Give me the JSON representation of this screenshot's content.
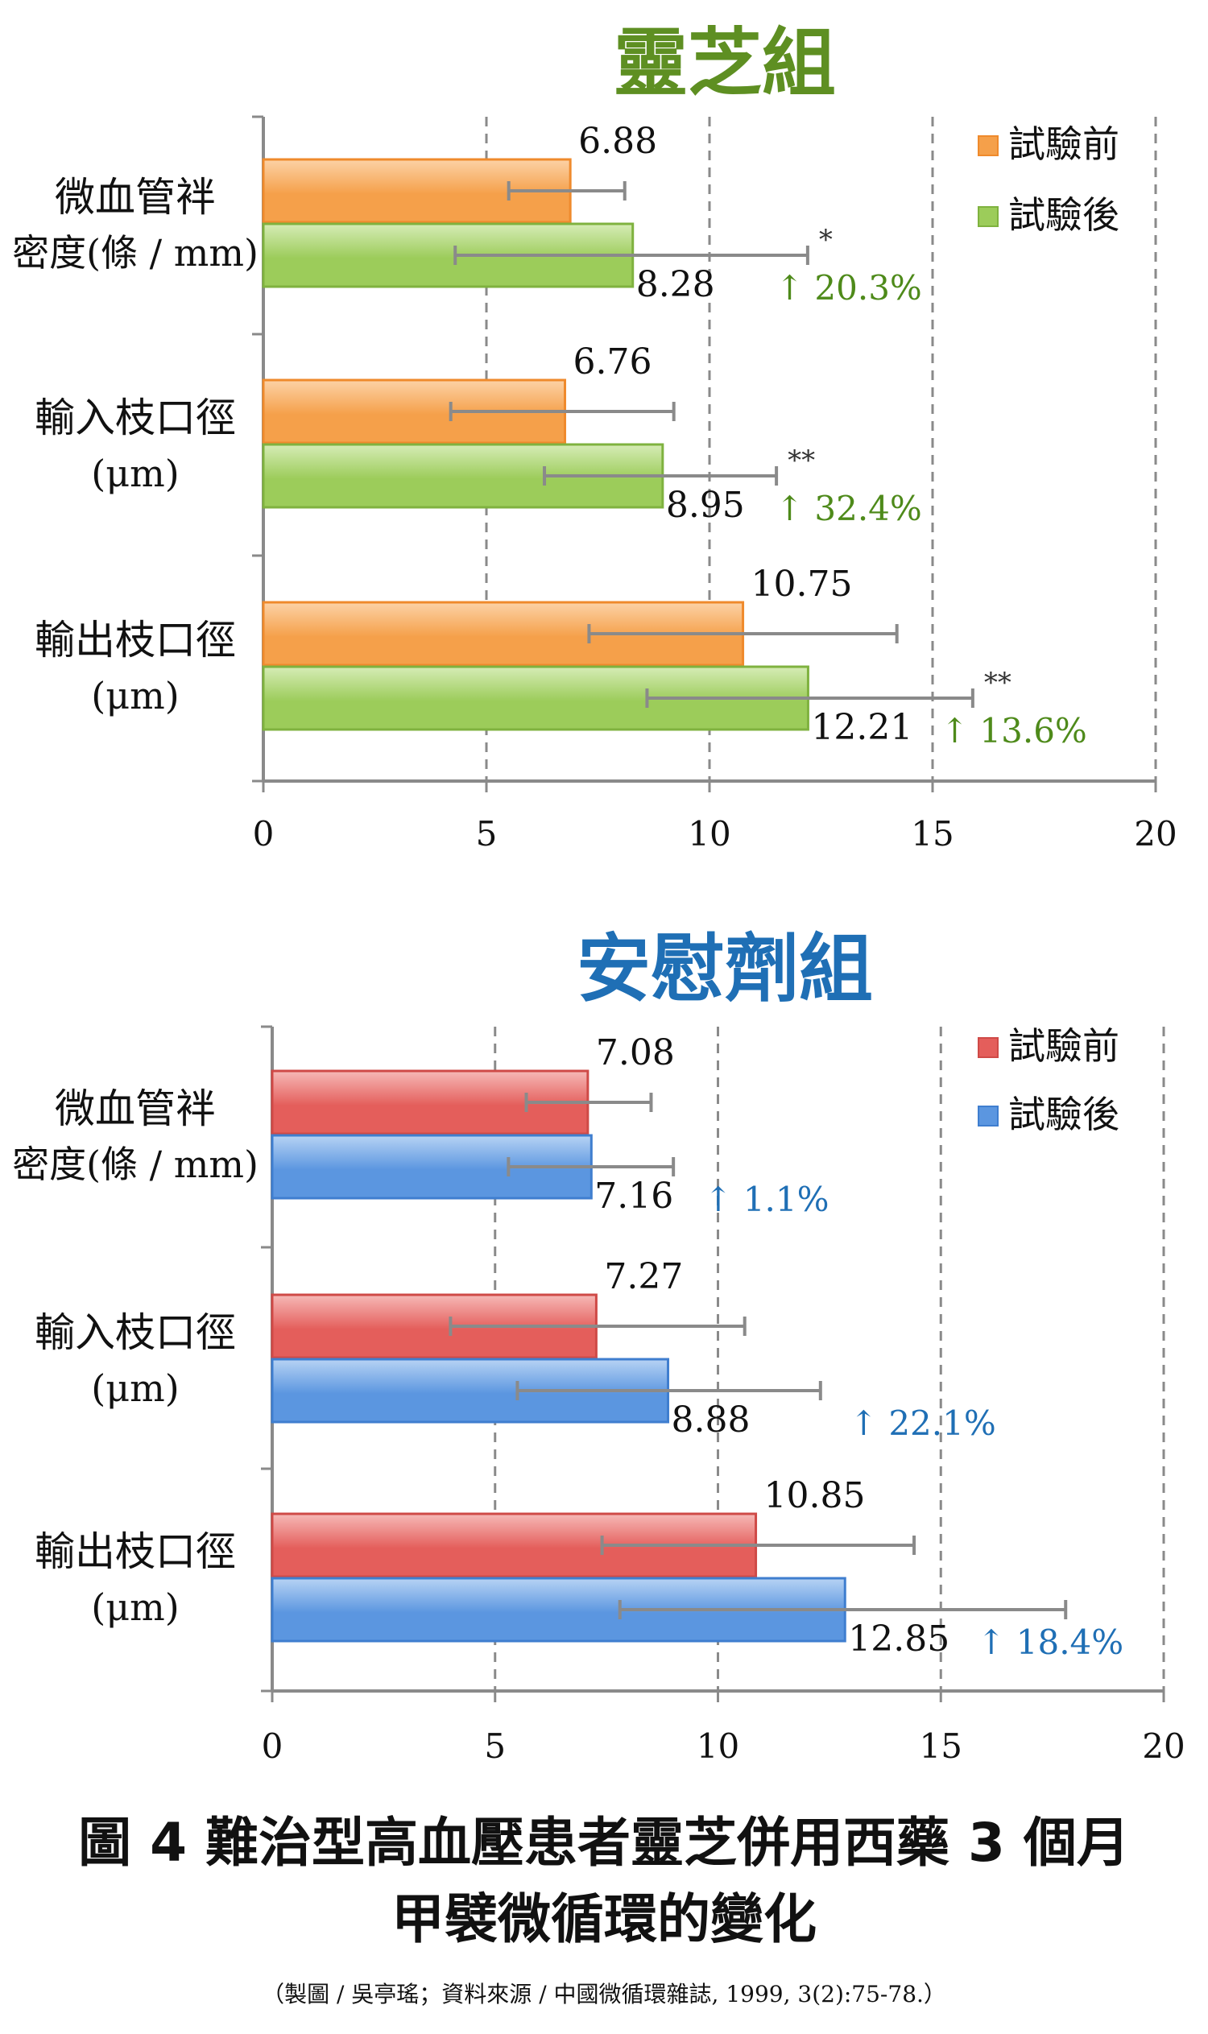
{
  "chart_data": [
    {
      "type": "bar",
      "orientation": "horizontal",
      "title": "靈芝組",
      "title_color": "#5e8f22",
      "categories": [
        {
          "line1": "微血管袢",
          "line2": "密度(條 / mm)"
        },
        {
          "line1": "輸入枝口徑",
          "line2": "(μm)"
        },
        {
          "line1": "輸出枝口徑",
          "line2": "(μm)"
        }
      ],
      "series": [
        {
          "name": "試驗前",
          "color": "#f5a04a",
          "color_light": "#fcd2a6",
          "stroke": "#ef8a2c",
          "values": [
            6.88,
            6.76,
            10.75
          ],
          "error_bars": [
            [
              5.5,
              8.1
            ],
            [
              4.2,
              9.2
            ],
            [
              7.3,
              14.2
            ]
          ],
          "labels": [
            "6.88",
            "6.76",
            "10.75"
          ]
        },
        {
          "name": "試驗後",
          "color": "#9ccc5a",
          "color_light": "#d6ecb6",
          "stroke": "#7fb23f",
          "values": [
            8.28,
            8.95,
            12.21
          ],
          "error_bars": [
            [
              4.3,
              12.2
            ],
            [
              6.3,
              11.5
            ],
            [
              8.6,
              15.9
            ]
          ],
          "labels": [
            "8.28",
            "8.95",
            "12.21"
          ],
          "significance": [
            "*",
            "**",
            "**"
          ],
          "changes": [
            "↑ 20.3%",
            "↑ 32.4%",
            "↑ 13.6%"
          ]
        }
      ],
      "change_color": "#4e8a1a",
      "x_ticks": [
        "0",
        "5",
        "10",
        "15",
        "20"
      ],
      "xlim": [
        0,
        20
      ],
      "gridlines": "dashed",
      "legend_position": "top-right"
    },
    {
      "type": "bar",
      "orientation": "horizontal",
      "title": "安慰劑組",
      "title_color": "#1f6fb5",
      "categories": [
        {
          "line1": "微血管袢",
          "line2": "密度(條 / mm)"
        },
        {
          "line1": "輸入枝口徑",
          "line2": "(μm)"
        },
        {
          "line1": "輸出枝口徑",
          "line2": "(μm)"
        }
      ],
      "series": [
        {
          "name": "試驗前",
          "color": "#e45e5b",
          "color_light": "#f6b9b7",
          "stroke": "#cf4a47",
          "values": [
            7.08,
            7.27,
            10.85
          ],
          "error_bars": [
            [
              5.7,
              8.5
            ],
            [
              4.0,
              10.6
            ],
            [
              7.4,
              14.4
            ]
          ],
          "labels": [
            "7.08",
            "7.27",
            "10.85"
          ]
        },
        {
          "name": "試驗後",
          "color": "#5b96e0",
          "color_light": "#b7d3f4",
          "stroke": "#3f7ecf",
          "values": [
            7.16,
            8.88,
            12.85
          ],
          "error_bars": [
            [
              5.3,
              9.0
            ],
            [
              5.5,
              12.3
            ],
            [
              7.8,
              17.8
            ]
          ],
          "labels": [
            "7.16",
            "8.88",
            "12.85"
          ],
          "significance": [
            "",
            "",
            ""
          ],
          "changes": [
            "↑ 1.1%",
            "↑ 22.1%",
            "↑ 18.4%"
          ]
        }
      ],
      "change_color": "#1f6fb5",
      "x_ticks": [
        "0",
        "5",
        "10",
        "15",
        "20"
      ],
      "xlim": [
        0,
        20
      ],
      "gridlines": "dashed",
      "legend_position": "top-right"
    }
  ],
  "caption": {
    "line1": "圖 4 難治型高血壓患者靈芝併用西藥 3 個月",
    "line2": "甲襞微循環的變化",
    "source": "（製圖 / 吳亭瑤；資料來源 / 中國微循環雜誌, 1999, 3(2):75-78.）"
  }
}
